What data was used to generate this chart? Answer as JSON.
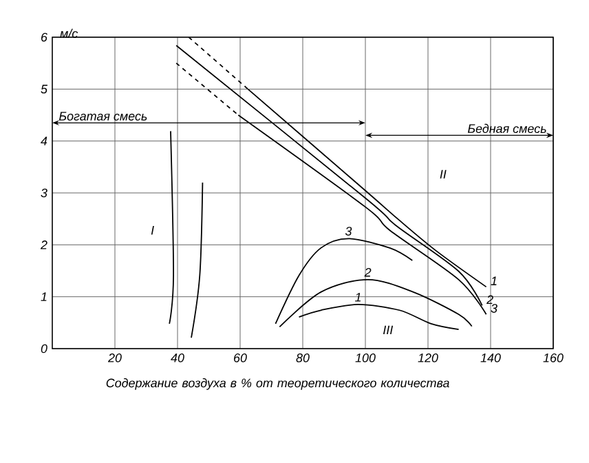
{
  "chart_data": {
    "type": "line",
    "ylabel": "м/с",
    "xlabel": "Содержание воздуха в % от теоретического количества",
    "xlim": [
      0,
      160
    ],
    "xticks": [
      20,
      40,
      60,
      80,
      100,
      120,
      140,
      160
    ],
    "ylim": [
      0,
      6
    ],
    "yticks": [
      0,
      1,
      2,
      3,
      4,
      5,
      6
    ],
    "grid": true,
    "marker": "none",
    "series": [
      {
        "color": "#000000",
        "line_style": "dashed",
        "x": [
          43.6,
          62.5
        ],
        "values": [
          6.0,
          5.0
        ]
      },
      {
        "name": "1",
        "color": "#000000",
        "line_style": "solid",
        "x": [
          62.5,
          99.9,
          110.9,
          122.7,
          138.6
        ],
        "values": [
          5.0,
          3.05,
          2.47,
          1.88,
          1.19
        ]
      },
      {
        "name": "2",
        "color": "#000000",
        "line_style": "solid",
        "x": [
          39.6,
          100,
          109.6,
          129.8,
          137.3
        ],
        "values": [
          5.84,
          2.9,
          2.38,
          1.49,
          0.83
        ]
      },
      {
        "color": "#000000",
        "line_style": "dashed",
        "x": [
          39.6,
          59.4
        ],
        "values": [
          5.5,
          4.5
        ]
      },
      {
        "name": "3",
        "color": "#000000",
        "line_style": "solid",
        "x": [
          59.4,
          100,
          107.8,
          129.8,
          138.6
        ],
        "values": [
          4.5,
          2.73,
          2.28,
          1.33,
          0.66
        ]
      },
      {
        "name": "3",
        "color": "#000000",
        "line_style": "solid",
        "x": [
          71.3,
          78.8,
          85.8,
          94.6,
          107.8,
          115
        ],
        "values": [
          0.48,
          1.41,
          1.94,
          2.12,
          1.94,
          1.7
        ]
      },
      {
        "name": "2",
        "color": "#000000",
        "line_style": "solid",
        "x": [
          72.6,
          85.8,
          100.8,
          115.3,
          129.8,
          134
        ],
        "values": [
          0.42,
          1.09,
          1.33,
          1.09,
          0.66,
          0.43
        ]
      },
      {
        "name": "1",
        "color": "#000000",
        "line_style": "solid",
        "x": [
          78.8,
          85.8,
          97.7,
          110.9,
          121,
          129.8
        ],
        "values": [
          0.61,
          0.74,
          0.85,
          0.74,
          0.48,
          0.37
        ]
      },
      {
        "color": "#000000",
        "line_style": "solid",
        "x": [
          37.8,
          38.7,
          37.4
        ],
        "values": [
          4.19,
          1.4,
          0.48
        ]
      },
      {
        "color": "#000000",
        "line_style": "solid",
        "x": [
          48,
          47.1,
          44.4
        ],
        "values": [
          3.2,
          1.41,
          0.21
        ]
      }
    ],
    "annotations": [
      "Богатая смесь",
      "Бедная смесь",
      "I",
      "II",
      "III"
    ]
  }
}
